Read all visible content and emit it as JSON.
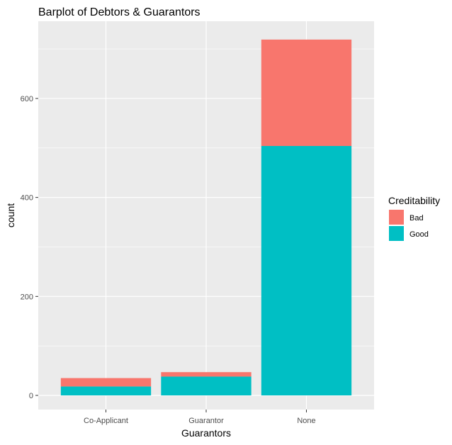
{
  "chart_data": {
    "type": "bar",
    "stacked": true,
    "title": "Barplot of Debtors & Guarantors",
    "xlabel": "Guarantors",
    "ylabel": "count",
    "categories": [
      "Co-Applicant",
      "Guarantor",
      "None"
    ],
    "series": [
      {
        "name": "Good",
        "values": [
          18,
          38,
          504
        ],
        "color": "#00BFC4"
      },
      {
        "name": "Bad",
        "values": [
          17,
          9,
          215
        ],
        "color": "#F8766D"
      }
    ],
    "y_ticks": [
      0,
      200,
      400,
      600
    ],
    "ylim": [
      0,
      756
    ],
    "grid": true,
    "legend": {
      "title": "Creditability",
      "position": "right",
      "entries": [
        {
          "label": "Bad",
          "color": "#F8766D"
        },
        {
          "label": "Good",
          "color": "#00BFC4"
        }
      ]
    },
    "panel_background": "#EBEBEB",
    "grid_color": "#FFFFFF"
  }
}
